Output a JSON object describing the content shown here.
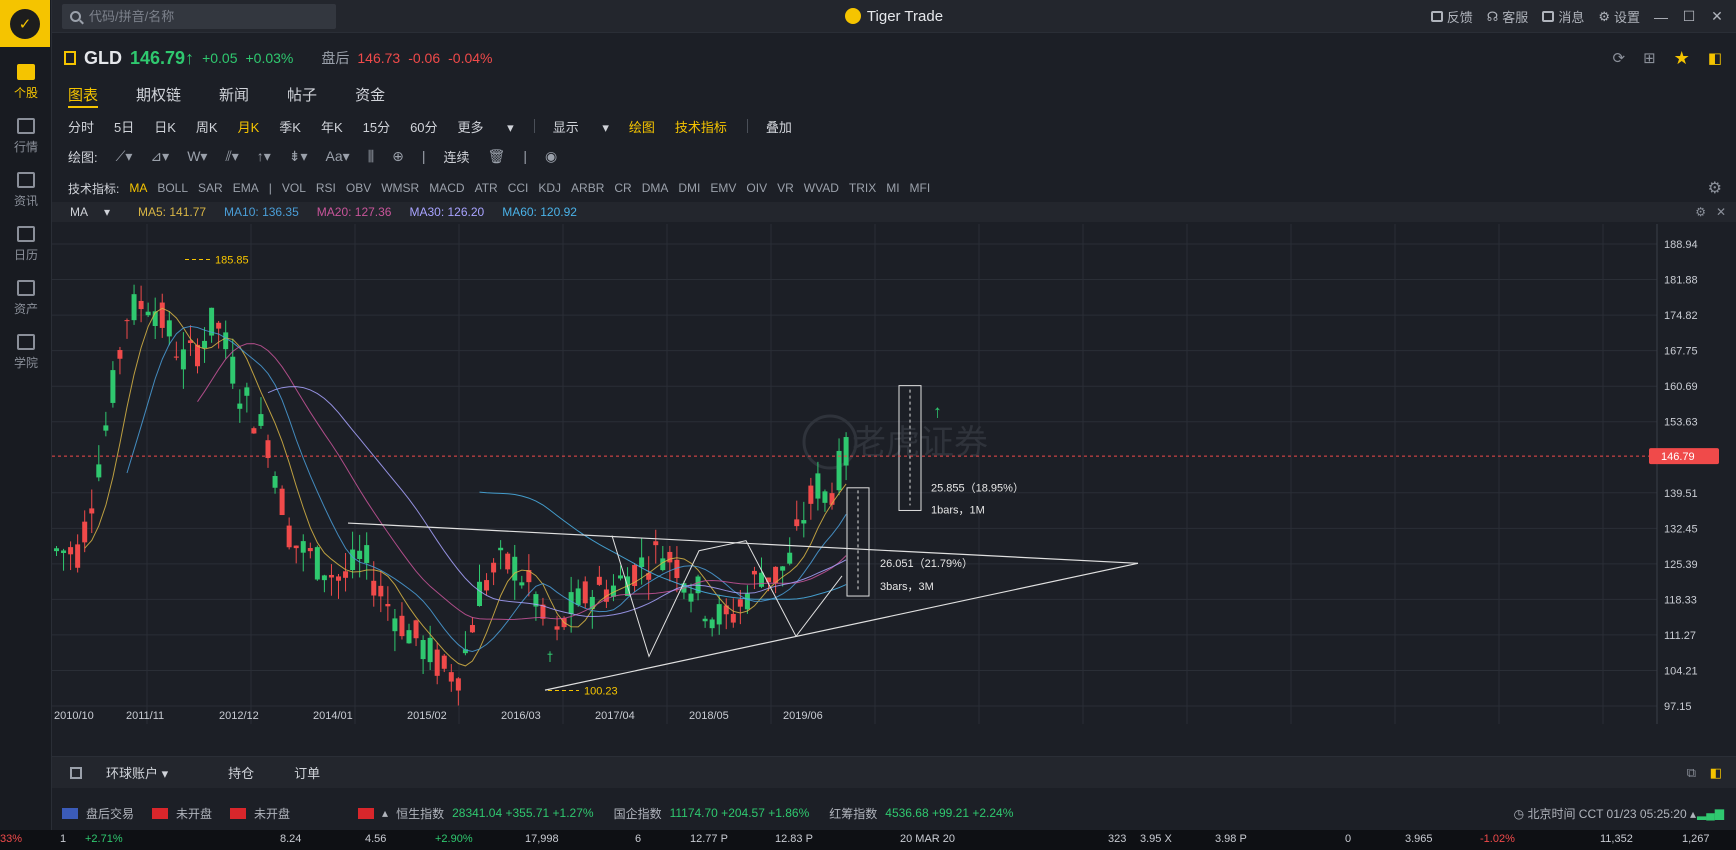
{
  "app": {
    "title": "Tiger Trade"
  },
  "search": {
    "placeholder": "代码/拼音/名称"
  },
  "topbar": {
    "feedback": "反馈",
    "service": "客服",
    "messages": "消息",
    "settings": "设置"
  },
  "sidebar": {
    "items": [
      "个股",
      "行情",
      "资讯",
      "日历",
      "资产",
      "学院"
    ]
  },
  "quote": {
    "symbol": "GLD",
    "price": "146.79",
    "arrow": "↑",
    "change": "+0.05",
    "change_pct": "+0.03%",
    "after_hours_label": "盘后",
    "after_hours_price": "146.73",
    "after_hours_change": "-0.06",
    "after_hours_pct": "-0.04%"
  },
  "tabs": [
    "图表",
    "期权链",
    "新闻",
    "帖子",
    "资金"
  ],
  "periods": {
    "items": [
      "分时",
      "5日",
      "日K",
      "周K",
      "月K",
      "季K",
      "年K",
      "15分",
      "60分",
      "更多"
    ],
    "display": "显示",
    "draw": "绘图",
    "tech": "技术指标",
    "overlay": "叠加"
  },
  "draw_bar": {
    "label": "绘图:",
    "continuous": "连续"
  },
  "indicators": {
    "label": "技术指标:",
    "items": [
      "MA",
      "BOLL",
      "SAR",
      "EMA",
      "|",
      "VOL",
      "RSI",
      "OBV",
      "WMSR",
      "MACD",
      "ATR",
      "CCI",
      "KDJ",
      "ARBR",
      "CR",
      "DMA",
      "DMI",
      "EMV",
      "OIV",
      "VR",
      "WVAD",
      "TRIX",
      "MI",
      "MFI"
    ]
  },
  "ma_legend": {
    "name": "MA",
    "ma5": "MA5: 141.77",
    "ma10": "MA10: 136.35",
    "ma20": "MA20: 127.36",
    "ma30": "MA30: 126.20",
    "ma60": "MA60: 120.92",
    "colors": {
      "ma5": "#d8b545",
      "ma10": "#4a9ed8",
      "ma20": "#c8559a",
      "ma30": "#a8a3ff",
      "ma60": "#4ab2e8"
    }
  },
  "chart_data": {
    "type": "candlestick",
    "y_ticks": [
      "188.94",
      "181.88",
      "174.82",
      "167.75",
      "160.69",
      "153.63",
      "146.79",
      "139.51",
      "132.45",
      "125.39",
      "118.33",
      "111.27",
      "104.21",
      "97.15"
    ],
    "x_ticks": [
      "2010/10",
      "2011/11",
      "2012/12",
      "2014/01",
      "2015/02",
      "2016/03",
      "2017/04",
      "2018/05",
      "2019/06"
    ],
    "current_price": "146.79",
    "high_label": "185.85",
    "low_label": "100.23",
    "annotation1_l1": "25.855（18.95%）",
    "annotation1_l2": "1bars，1M",
    "annotation2_l1": "26.051（21.79%）",
    "annotation2_l2": "3bars，3M",
    "watermark": "老虎证券"
  },
  "bottom": {
    "account": "环球账户",
    "positions": "持仓",
    "orders": "订单"
  },
  "status": {
    "us": "盘后交易",
    "hk": "未开盘",
    "cn": "未开盘",
    "hsi_label": "恒生指数",
    "hsi": "28341.04 +355.71 +1.27%",
    "hscei_label": "国企指数",
    "hscei": "11174.70 +204.57 +1.86%",
    "red_label": "红筹指数",
    "red": "4536.68 +99.21 +2.24%",
    "time": "北京时间 CCT  01/23 05:25:20"
  },
  "strip": [
    "33%",
    "1",
    "+2.71%",
    "8.24",
    "4.56",
    "+2.90%",
    "17,998",
    "6",
    "12.77 P",
    "12.83 P",
    "20 MAR 20",
    "323",
    "3.95 X",
    "3.98 P",
    "0",
    "3.965",
    "-1.02%",
    "11,352",
    "1,267"
  ]
}
